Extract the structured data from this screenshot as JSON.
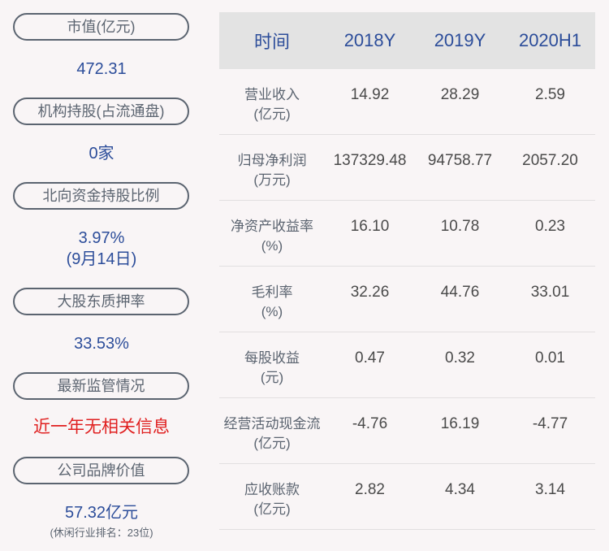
{
  "left_panel": {
    "items": [
      {
        "label": "市值(亿元)",
        "value": "472.31"
      },
      {
        "label": "机构持股(占流通盘)",
        "value": "0家"
      },
      {
        "label": "北向资金持股比例",
        "value": "3.97%",
        "value2": "(9月14日)"
      },
      {
        "label": "大股东质押率",
        "value": "33.53%"
      },
      {
        "label": "最新监管情况",
        "value": "近一年无相关信息"
      },
      {
        "label": "公司品牌价值",
        "value": "57.32亿元",
        "note": "(休闲行业排名：23位)"
      }
    ]
  },
  "table": {
    "headers": [
      "时间",
      "2018Y",
      "2019Y",
      "2020H1"
    ],
    "rows": [
      {
        "label": "营业收入",
        "unit": "(亿元)",
        "values": [
          "14.92",
          "28.29",
          "2.59"
        ]
      },
      {
        "label": "归母净利润",
        "unit": "(万元)",
        "values": [
          "137329.48",
          "94758.77",
          "2057.20"
        ]
      },
      {
        "label": "净资产收益率",
        "unit": "(%)",
        "values": [
          "16.10",
          "10.78",
          "0.23"
        ]
      },
      {
        "label": "毛利率",
        "unit": "(%)",
        "values": [
          "32.26",
          "44.76",
          "33.01"
        ]
      },
      {
        "label": "每股收益",
        "unit": "(元)",
        "values": [
          "0.47",
          "0.32",
          "0.01"
        ]
      },
      {
        "label": "经营活动现金流",
        "unit": "(亿元)",
        "values": [
          "-4.76",
          "16.19",
          "-4.77"
        ]
      },
      {
        "label": "应收账款",
        "unit": "(亿元)",
        "values": [
          "2.82",
          "4.34",
          "3.14"
        ]
      }
    ]
  },
  "colors": {
    "accent_blue": "#2c4d9a",
    "alert_red": "#e02020",
    "pill_border": "#5b6470",
    "header_bg": "#e3e3e3",
    "background": "#f9f5f6"
  }
}
